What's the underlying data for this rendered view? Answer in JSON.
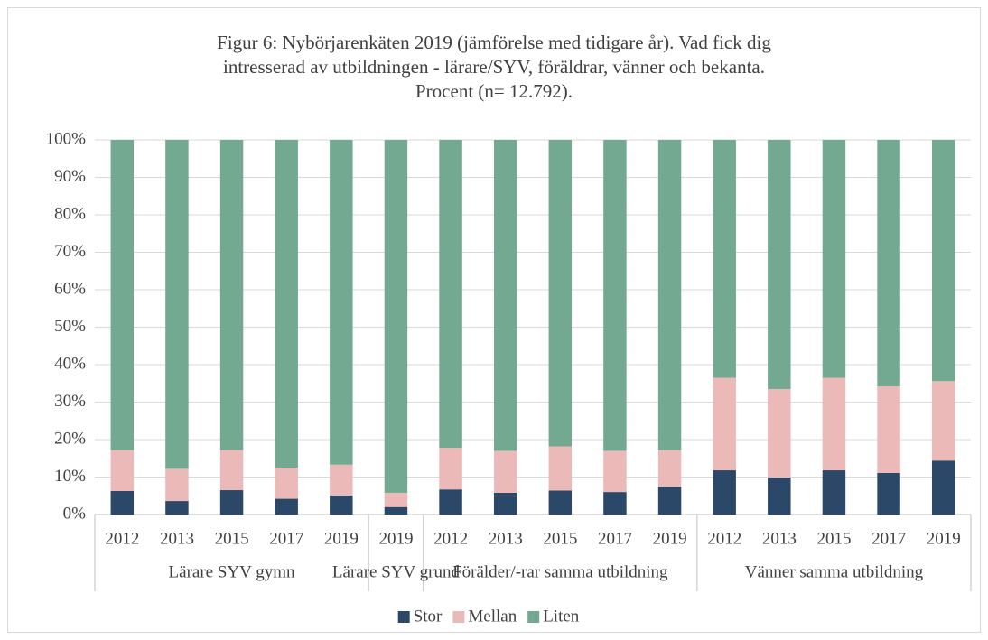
{
  "chart_data": {
    "type": "stacked_bar",
    "title": "Figur 6: Nybörjarenkäten 2019 (jämförelse med tidigare år). Vad fick dig intresserad av utbildningen - lärare/SYV, föräldrar, vänner och bekanta. Procent (n= 12.792).",
    "groups": [
      {
        "name": "Lärare SYV gymn",
        "categories": [
          "2012",
          "2013",
          "2015",
          "2017",
          "2019"
        ]
      },
      {
        "name": "Lärare SYV grund",
        "categories": [
          "2019"
        ]
      },
      {
        "name": "Förälder/-rar samma utbildning",
        "categories": [
          "2012",
          "2013",
          "2015",
          "2017",
          "2019"
        ]
      },
      {
        "name": "Vänner samma utbildning",
        "categories": [
          "2012",
          "2013",
          "2015",
          "2017",
          "2019"
        ]
      }
    ],
    "series": [
      {
        "name": "Stor",
        "color": "#2b4868",
        "values": [
          6.3,
          3.6,
          6.5,
          4.2,
          5.1,
          2.0,
          6.7,
          5.8,
          6.4,
          6.0,
          7.4,
          11.8,
          9.9,
          11.8,
          11.1,
          14.4
        ]
      },
      {
        "name": "Mellan",
        "color": "#ebb9b8",
        "values": [
          10.9,
          8.6,
          10.7,
          8.3,
          8.2,
          3.8,
          11.1,
          11.2,
          11.8,
          11.0,
          9.8,
          24.7,
          23.6,
          24.7,
          23.1,
          21.2
        ]
      },
      {
        "name": "Liten",
        "color": "#72a990",
        "values": [
          82.8,
          87.8,
          82.8,
          87.5,
          86.7,
          94.2,
          82.2,
          83.0,
          81.8,
          83.0,
          82.8,
          63.5,
          66.5,
          63.5,
          65.8,
          64.4
        ]
      }
    ],
    "ylim": [
      0,
      100
    ],
    "yticks": [
      {
        "value": 0,
        "label": "0%"
      },
      {
        "value": 10,
        "label": "10%"
      },
      {
        "value": 20,
        "label": "20%"
      },
      {
        "value": 30,
        "label": "30%"
      },
      {
        "value": 40,
        "label": "40%"
      },
      {
        "value": 50,
        "label": "50%"
      },
      {
        "value": 60,
        "label": "60%"
      },
      {
        "value": 70,
        "label": "70%"
      },
      {
        "value": 80,
        "label": "80%"
      },
      {
        "value": 90,
        "label": "90%"
      },
      {
        "value": 100,
        "label": "100%"
      }
    ],
    "grid": true,
    "legend": "bottom"
  }
}
